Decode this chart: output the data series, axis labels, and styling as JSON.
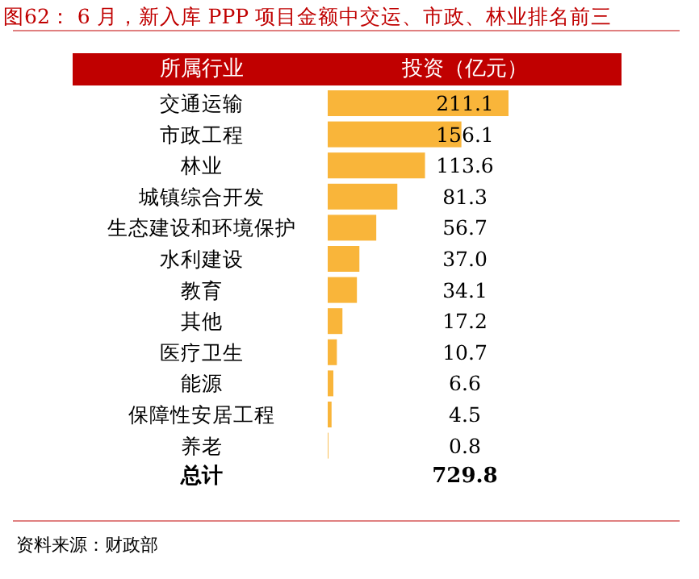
{
  "chart_data": {
    "type": "bar",
    "orientation": "horizontal",
    "title": "图62： 6 月，新入库 PPP 项目金额中交运、市政、林业排名前三",
    "ylabel": "所属行业",
    "xlabel": "投资（亿元）",
    "categories": [
      "交通运输",
      "市政工程",
      "林业",
      "城镇综合开发",
      "生态建设和环境保护",
      "水利建设",
      "教育",
      "其他",
      "医疗卫生",
      "能源",
      "保障性安居工程",
      "养老"
    ],
    "values": [
      211.1,
      156.1,
      113.6,
      81.3,
      56.7,
      37.0,
      34.1,
      17.2,
      10.7,
      6.6,
      4.5,
      0.8
    ],
    "value_labels": [
      "211.1",
      "156.1",
      "113.6",
      "81.3",
      "56.7",
      "37.0",
      "34.1",
      "17.2",
      "10.7",
      "6.6",
      "4.5",
      "0.8"
    ],
    "color": "#f9b53a",
    "annotations": [
      "总计",
      "729.8",
      "资料来源：财政部"
    ]
  }
}
